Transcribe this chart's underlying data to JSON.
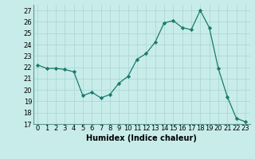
{
  "x": [
    0,
    1,
    2,
    3,
    4,
    5,
    6,
    7,
    8,
    9,
    10,
    11,
    12,
    13,
    14,
    15,
    16,
    17,
    18,
    19,
    20,
    21,
    22,
    23
  ],
  "y": [
    22.2,
    21.9,
    21.9,
    21.8,
    21.6,
    19.5,
    19.8,
    19.3,
    19.6,
    20.6,
    21.2,
    22.7,
    23.2,
    24.2,
    25.9,
    26.1,
    25.5,
    25.3,
    27.0,
    25.5,
    21.9,
    19.4,
    17.5,
    17.2
  ],
  "line_color": "#1a7a6e",
  "marker": "D",
  "marker_size": 2.2,
  "bg_color": "#c8ecea",
  "grid_color": "#a8d4d0",
  "xlabel": "Humidex (Indice chaleur)",
  "ylim": [
    17,
    27.5
  ],
  "xlim": [
    -0.5,
    23.5
  ],
  "yticks": [
    17,
    18,
    19,
    20,
    21,
    22,
    23,
    24,
    25,
    26,
    27
  ],
  "xticks": [
    0,
    1,
    2,
    3,
    4,
    5,
    6,
    7,
    8,
    9,
    10,
    11,
    12,
    13,
    14,
    15,
    16,
    17,
    18,
    19,
    20,
    21,
    22,
    23
  ],
  "xtick_labels": [
    "0",
    "1",
    "2",
    "3",
    "4",
    "5",
    "6",
    "7",
    "8",
    "9",
    "10",
    "11",
    "12",
    "13",
    "14",
    "15",
    "16",
    "17",
    "18",
    "19",
    "20",
    "21",
    "22",
    "23"
  ],
  "ytick_labels": [
    "17",
    "18",
    "19",
    "20",
    "21",
    "22",
    "23",
    "24",
    "25",
    "26",
    "27"
  ],
  "font_size": 6.0,
  "label_font_size": 7.0
}
